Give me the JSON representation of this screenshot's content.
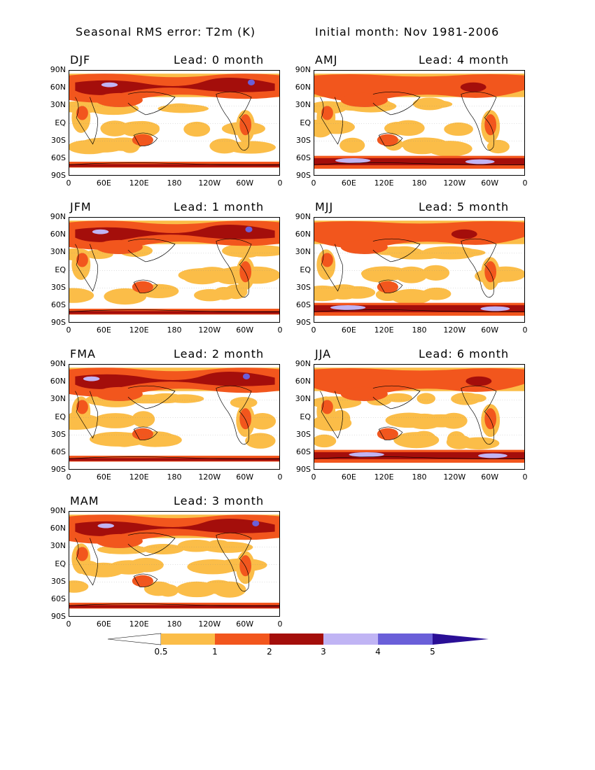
{
  "title_left": "Seasonal RMS error: T2m (K)",
  "title_right": "Initial month: Nov 1981-2006",
  "lat_labels": [
    "90N",
    "60N",
    "30N",
    "EQ",
    "30S",
    "60S",
    "90S"
  ],
  "lon_labels": [
    "0",
    "60E",
    "120E",
    "180",
    "120W",
    "60W",
    "0"
  ],
  "panels": [
    {
      "season": "DJF",
      "lead": "Lead: 0 month"
    },
    {
      "season": "AMJ",
      "lead": "Lead: 4 month"
    },
    {
      "season": "JFM",
      "lead": "Lead: 1 month"
    },
    {
      "season": "MJJ",
      "lead": "Lead: 5 month"
    },
    {
      "season": "FMA",
      "lead": "Lead: 2 month"
    },
    {
      "season": "JJA",
      "lead": "Lead: 6 month"
    },
    {
      "season": "MAM",
      "lead": "Lead: 3 month"
    }
  ],
  "colorbar": {
    "labels": [
      "0.5",
      "1",
      "2",
      "3",
      "4",
      "5"
    ],
    "colors": [
      "#ffffff",
      "#fbbd48",
      "#f2561d",
      "#a40e0b",
      "#c0b4f4",
      "#6a5fd9",
      "#2a0f96"
    ]
  }
}
